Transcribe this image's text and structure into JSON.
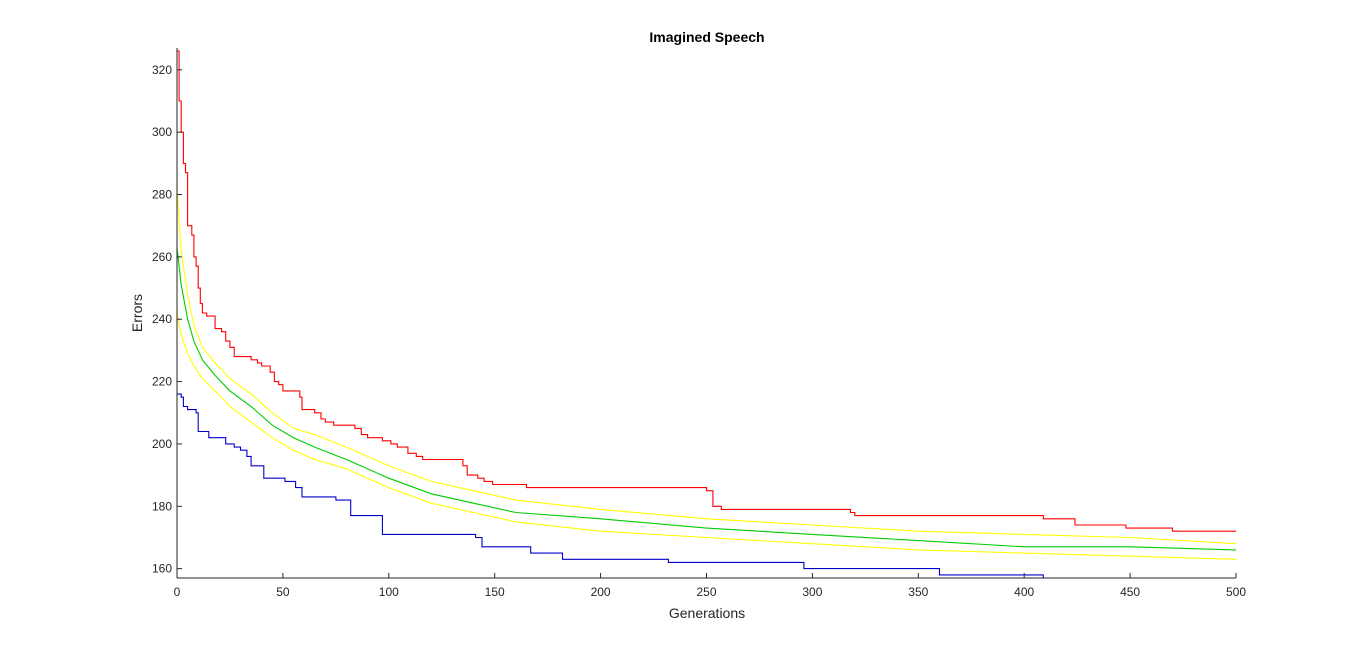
{
  "chart_data": {
    "type": "line",
    "title": "Imagined Speech",
    "xlabel": "Generations",
    "ylabel": "Errors",
    "xlim": [
      0,
      500
    ],
    "ylim": [
      157,
      327
    ],
    "xticks": [
      0,
      50,
      100,
      150,
      200,
      250,
      300,
      350,
      400,
      450,
      500
    ],
    "yticks": [
      160,
      180,
      200,
      220,
      240,
      260,
      280,
      300,
      320
    ],
    "grid": false,
    "series": [
      {
        "color": "#ff0000",
        "step": true,
        "points": [
          [
            0,
            326
          ],
          [
            1,
            310
          ],
          [
            2,
            300
          ],
          [
            3,
            290
          ],
          [
            4,
            287
          ],
          [
            5,
            270
          ],
          [
            7,
            267
          ],
          [
            8,
            260
          ],
          [
            9,
            257
          ],
          [
            10,
            250
          ],
          [
            11,
            245
          ],
          [
            12,
            242
          ],
          [
            14,
            241
          ],
          [
            18,
            237
          ],
          [
            21,
            236
          ],
          [
            23,
            233
          ],
          [
            25,
            231
          ],
          [
            27,
            228
          ],
          [
            35,
            227
          ],
          [
            38,
            226
          ],
          [
            40,
            225
          ],
          [
            44,
            223
          ],
          [
            46,
            220
          ],
          [
            48,
            219
          ],
          [
            50,
            217
          ],
          [
            58,
            215
          ],
          [
            59,
            211
          ],
          [
            65,
            210
          ],
          [
            68,
            208
          ],
          [
            70,
            207
          ],
          [
            74,
            206
          ],
          [
            84,
            205
          ],
          [
            87,
            203
          ],
          [
            90,
            202
          ],
          [
            97,
            201
          ],
          [
            101,
            200
          ],
          [
            104,
            199
          ],
          [
            109,
            197
          ],
          [
            113,
            196
          ],
          [
            116,
            195
          ],
          [
            135,
            193
          ],
          [
            137,
            190
          ],
          [
            142,
            189
          ],
          [
            145,
            188
          ],
          [
            149,
            187
          ],
          [
            165,
            186
          ],
          [
            250,
            185
          ],
          [
            253,
            180
          ],
          [
            257,
            179
          ],
          [
            318,
            178
          ],
          [
            320,
            177
          ],
          [
            409,
            176
          ],
          [
            424,
            174
          ],
          [
            448,
            173
          ],
          [
            470,
            172
          ],
          [
            500,
            172
          ]
        ]
      },
      {
        "color": "#ffff00",
        "step": false,
        "points": [
          [
            0,
            282
          ],
          [
            2,
            262
          ],
          [
            5,
            248
          ],
          [
            8,
            238
          ],
          [
            12,
            231
          ],
          [
            18,
            226
          ],
          [
            25,
            221
          ],
          [
            35,
            216
          ],
          [
            45,
            210
          ],
          [
            55,
            205
          ],
          [
            65,
            203
          ],
          [
            80,
            199
          ],
          [
            100,
            193
          ],
          [
            120,
            188
          ],
          [
            140,
            185
          ],
          [
            160,
            182
          ],
          [
            200,
            179
          ],
          [
            250,
            176
          ],
          [
            300,
            174
          ],
          [
            350,
            172
          ],
          [
            400,
            171
          ],
          [
            450,
            170
          ],
          [
            500,
            168
          ]
        ]
      },
      {
        "color": "#00cc00",
        "step": false,
        "points": [
          [
            0,
            263
          ],
          [
            2,
            251
          ],
          [
            5,
            240
          ],
          [
            8,
            233
          ],
          [
            12,
            227
          ],
          [
            18,
            222
          ],
          [
            25,
            217
          ],
          [
            35,
            212
          ],
          [
            45,
            206
          ],
          [
            55,
            202
          ],
          [
            65,
            199
          ],
          [
            80,
            195
          ],
          [
            100,
            189
          ],
          [
            120,
            184
          ],
          [
            140,
            181
          ],
          [
            160,
            178
          ],
          [
            200,
            176
          ],
          [
            250,
            173
          ],
          [
            300,
            171
          ],
          [
            350,
            169
          ],
          [
            400,
            167
          ],
          [
            450,
            167
          ],
          [
            500,
            166
          ]
        ]
      },
      {
        "color": "#ffff00",
        "step": false,
        "points": [
          [
            0,
            242
          ],
          [
            2,
            235
          ],
          [
            5,
            229
          ],
          [
            8,
            225
          ],
          [
            12,
            221
          ],
          [
            18,
            217
          ],
          [
            25,
            212
          ],
          [
            35,
            207
          ],
          [
            45,
            202
          ],
          [
            55,
            198
          ],
          [
            65,
            195
          ],
          [
            80,
            192
          ],
          [
            100,
            186
          ],
          [
            120,
            181
          ],
          [
            140,
            178
          ],
          [
            160,
            175
          ],
          [
            200,
            172
          ],
          [
            250,
            170
          ],
          [
            300,
            168
          ],
          [
            350,
            166
          ],
          [
            400,
            165
          ],
          [
            450,
            164
          ],
          [
            500,
            163
          ]
        ]
      },
      {
        "color": "#0000cc",
        "step": true,
        "points": [
          [
            0,
            216
          ],
          [
            2,
            215
          ],
          [
            3,
            212
          ],
          [
            5,
            211
          ],
          [
            9,
            210
          ],
          [
            10,
            204
          ],
          [
            15,
            202
          ],
          [
            23,
            200
          ],
          [
            27,
            199
          ],
          [
            30,
            198
          ],
          [
            33,
            196
          ],
          [
            35,
            193
          ],
          [
            41,
            189
          ],
          [
            51,
            188
          ],
          [
            56,
            186
          ],
          [
            59,
            183
          ],
          [
            71,
            183
          ],
          [
            75,
            182
          ],
          [
            82,
            177
          ],
          [
            97,
            171
          ],
          [
            141,
            170
          ],
          [
            144,
            167
          ],
          [
            163,
            167
          ],
          [
            167,
            165
          ],
          [
            182,
            163
          ],
          [
            232,
            162
          ],
          [
            296,
            160
          ],
          [
            358,
            160
          ],
          [
            360,
            158
          ],
          [
            409,
            157
          ],
          [
            500,
            157
          ]
        ]
      }
    ]
  }
}
